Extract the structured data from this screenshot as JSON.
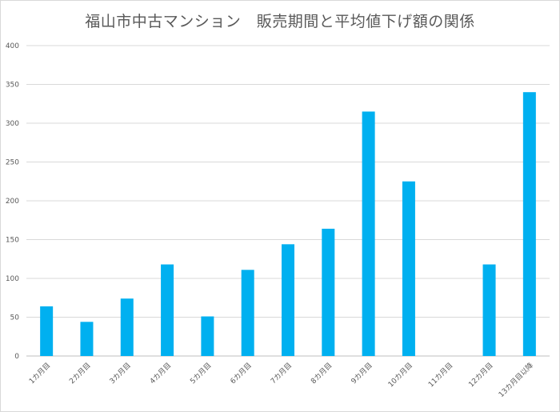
{
  "chart_data": {
    "type": "bar",
    "title": "福山市中古マンション　販売期間と平均値下げ額の関係",
    "xlabel": "",
    "ylabel": "",
    "ylim": [
      0,
      400
    ],
    "yticks": [
      0,
      50,
      100,
      150,
      200,
      250,
      300,
      350,
      400
    ],
    "grid": true,
    "legend": "none",
    "categories": [
      "1カ月目",
      "2カ月目",
      "3カ月目",
      "4カ月目",
      "5カ月目",
      "6カ月目",
      "7カ月目",
      "8カ月目",
      "9カ月目",
      "10カ月目",
      "11カ月目",
      "12カ月目",
      "13カ月目以降"
    ],
    "values": [
      64,
      44,
      74,
      118,
      51,
      111,
      144,
      164,
      315,
      225,
      0,
      118,
      340
    ],
    "bar_color": "#00b0f0"
  }
}
